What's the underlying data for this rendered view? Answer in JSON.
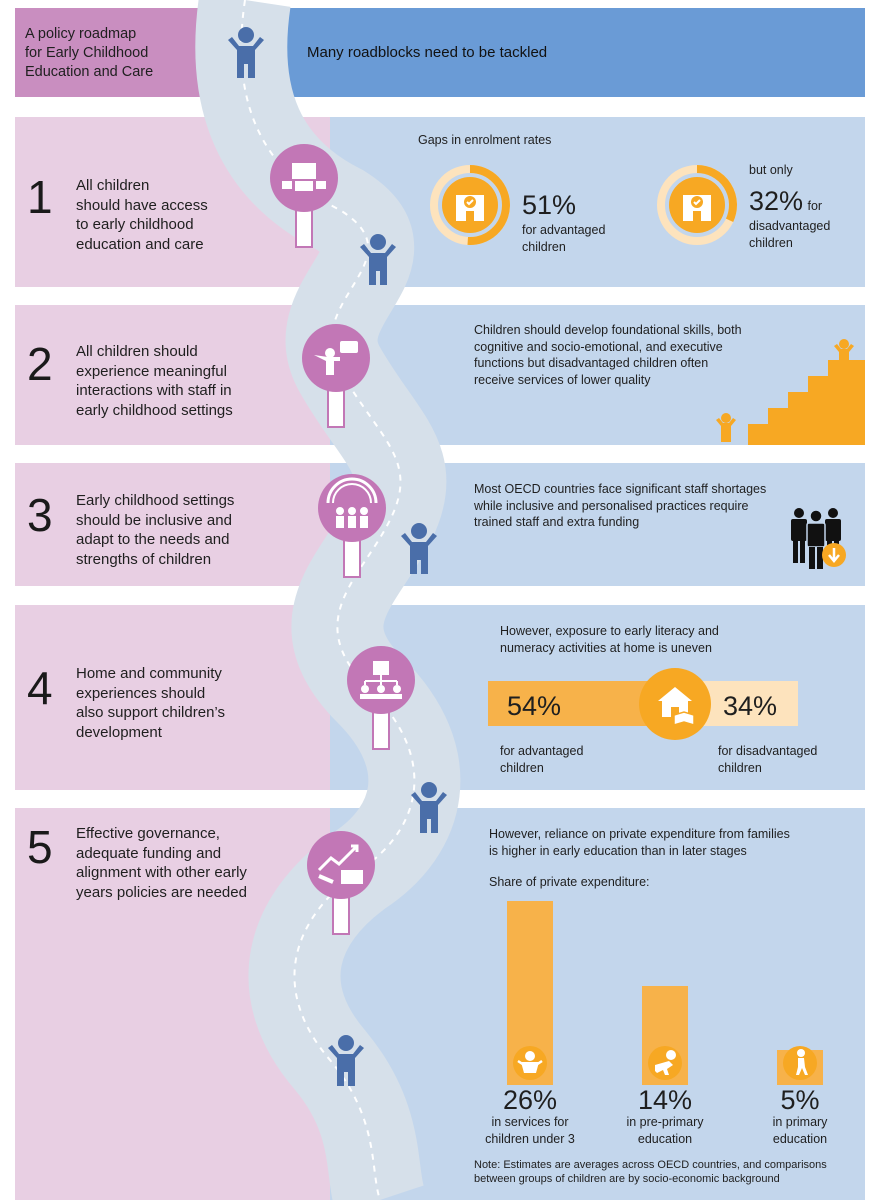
{
  "header": {
    "title": "A policy roadmap for Early Childhood Education and Care",
    "title_lines": [
      "A policy roadmap",
      "for Early Childhood",
      "Education and Care"
    ],
    "banner": "Many roadblocks need to be tackled"
  },
  "sections": [
    {
      "number": "1",
      "label_lines": [
        "All children",
        "should have access",
        "to early childhood",
        "education and care"
      ],
      "gaps_title": "Gaps in enrolment rates",
      "adv_pct": "51%",
      "adv_label_lines": [
        "for advantaged",
        "children"
      ],
      "but_only": "but only",
      "dis_pct": "32%",
      "dis_for": "for",
      "dis_label_lines": [
        "disadvantaged",
        "children"
      ],
      "adv_value": 51,
      "dis_value": 32
    },
    {
      "number": "2",
      "label_lines": [
        "All children should",
        "experience meaningful",
        "interactions with staff in",
        "early childhood settings"
      ],
      "text_lines": [
        "Children should develop foundational skills, both",
        "cognitive and socio-emotional, and executive",
        "functions but disadvantaged children often",
        "receive services of lower quality"
      ]
    },
    {
      "number": "3",
      "label_lines": [
        "Early childhood settings",
        "should be inclusive and",
        "adapt to the needs and",
        "strengths of children"
      ],
      "text_lines": [
        "Most OECD countries face significant staff shortages",
        "while inclusive and personalised practices require",
        "trained staff and extra funding"
      ]
    },
    {
      "number": "4",
      "label_lines": [
        "Home and community",
        "experiences should",
        "also support children’s",
        "development"
      ],
      "text_lines": [
        "However, exposure to early literacy and",
        "numeracy activities at home is uneven"
      ],
      "adv_pct": "54%",
      "dis_pct": "34%",
      "adv_label_lines": [
        "for advantaged",
        "children"
      ],
      "dis_label_lines": [
        "for disadvantaged",
        "children"
      ]
    },
    {
      "number": "5",
      "label_lines": [
        "Effective governance,",
        "adequate funding and",
        "alignment with other early",
        "years policies are needed"
      ],
      "text_lines": [
        "However, reliance on private expenditure from families",
        "is higher in early education than in later stages"
      ],
      "share_title": "Share of private expenditure:",
      "note_lines": [
        "Note: Estimates are averages across OECD countries, and comparisons",
        "between groups of children are by socio-economic background"
      ]
    }
  ],
  "chart_data": {
    "type": "bar",
    "title": "Share of private expenditure:",
    "categories": [
      "in services for children under 3",
      "in pre-primary education",
      "in primary education"
    ],
    "category_lines": [
      [
        "in services for",
        "children under 3"
      ],
      [
        "in pre-primary",
        "education"
      ],
      [
        "in primary",
        "education"
      ]
    ],
    "values": [
      26,
      14,
      5
    ],
    "value_labels": [
      "26%",
      "14%",
      "5%"
    ],
    "icons": [
      "baby-icon",
      "crawling-child-icon",
      "walking-child-icon"
    ]
  },
  "colors": {
    "header_left": "#c98ec0",
    "header_right": "#6a9bd6",
    "pink_panel": "#e8cfe3",
    "blue_panel": "#c3d6ec",
    "road": "#d6e0ea",
    "orange": "#f7a823",
    "light_orange": "#f7b24a",
    "pale_orange": "#fde3bd",
    "purple_icon": "#c277b6",
    "figure_blue": "#4a6ea9"
  }
}
